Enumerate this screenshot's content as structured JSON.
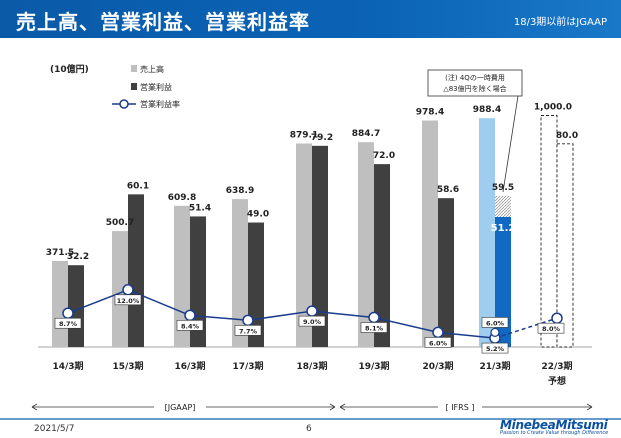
{
  "header": {
    "title": "売上高、営業利益、営業利益率",
    "note": "18/3期以前はJGAAP"
  },
  "chart_data": {
    "type": "bar",
    "unit_label": "(10億円)",
    "legend": {
      "sales": "売上高",
      "op": "営業利益",
      "margin": "営業利益率"
    },
    "categories": [
      "14/3期",
      "15/3期",
      "16/3期",
      "17/3期",
      "18/3期",
      "19/3期",
      "20/3期",
      "21/3期",
      "22/3期"
    ],
    "forecast_label": "予想",
    "sales": [
      371.5,
      500.7,
      609.8,
      638.9,
      879.1,
      884.7,
      978.4,
      988.4,
      1000.0
    ],
    "sales_labels": [
      "371.5",
      "500.7",
      "609.8",
      "638.9",
      "879.1",
      "884.7",
      "978.4",
      "988.4",
      "1,000.0"
    ],
    "op": [
      32.2,
      60.1,
      51.4,
      49.0,
      79.2,
      72.0,
      58.6,
      51.2,
      80.0
    ],
    "op_labels": [
      "32.2",
      "60.1",
      "51.4",
      "49.0",
      "79.2",
      "72.0",
      "58.6",
      "51.2",
      "80.0"
    ],
    "op_adjusted": {
      "category": "21/3期",
      "value": 59.5,
      "label": "59.5"
    },
    "margin": [
      8.7,
      12.0,
      8.4,
      7.7,
      9.0,
      8.1,
      6.0,
      5.2,
      8.0
    ],
    "margin_labels": [
      "8.7%",
      "12.0%",
      "8.4%",
      "7.7%",
      "9.0%",
      "8.1%",
      "6.0%",
      "5.2%",
      "8.0%"
    ],
    "margin_adjusted": {
      "category": "21/3期",
      "value": 6.0,
      "label": "6.0%"
    },
    "annotation": {
      "line1": "(注) 4Qの一時費用",
      "line2": "△83億円を除く場合"
    },
    "periods": {
      "jgaap": "[JGAAP]",
      "ifrs": "[ IFRS ]"
    },
    "ylim": [
      0,
      1100
    ]
  },
  "footer": {
    "date": "2021/5/7",
    "page": "6",
    "logo": "MinebeaMitsumi",
    "logo_tagline": "Passion to Create Value through Difference"
  },
  "colors": {
    "header": "#0b5fb0",
    "sales": "#bfbfbf",
    "op": "#404040",
    "sales_21": "#9fcdf0",
    "op_21": "#1169c4",
    "margin_line": "#1a3c8c"
  }
}
